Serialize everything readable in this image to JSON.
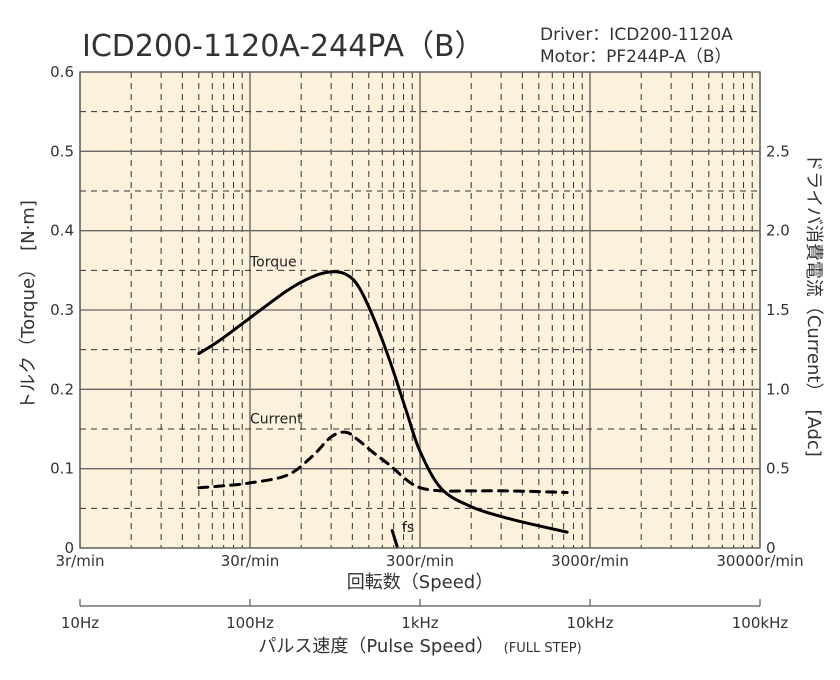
{
  "chart_data": {
    "type": "line",
    "title": "ICD200-1120A-244PA（B）",
    "subtitle_lines": [
      "Driver：ICD200-1120A",
      "Motor：PF244P-A（B）"
    ],
    "xlabel": "回転数（Speed）",
    "ylabel": "トルク（Torque）　[N·m]",
    "ylabel_right": "ドライバ消費電流（Current）　[Adc]",
    "x2label": "パルス速度（Pulse Speed）",
    "x2label_suffix": "(FULL STEP)",
    "xscale": "log",
    "xlim": [
      3,
      30000
    ],
    "ylim": [
      0,
      0.6
    ],
    "ylim_right": [
      0,
      3.0
    ],
    "x_ticks": [
      3,
      30,
      300,
      3000,
      30000
    ],
    "x_tick_labels": [
      "3r/min",
      "30r/min",
      "300r/min",
      "3000r/min",
      "30000r/min"
    ],
    "x2_ticks": [
      10,
      100,
      1000,
      10000,
      100000
    ],
    "x2_tick_labels": [
      "10Hz",
      "100Hz",
      "1kHz",
      "10kHz",
      "100kHz"
    ],
    "y_ticks": [
      0,
      0.1,
      0.2,
      0.3,
      0.4,
      0.5,
      0.6
    ],
    "y_tick_labels": [
      "0",
      "0.1",
      "0.2",
      "0.3",
      "0.4",
      "0.5",
      "0.6"
    ],
    "y_right_ticks": [
      0,
      0.5,
      1.0,
      1.5,
      2.0,
      2.5
    ],
    "y_right_tick_labels": [
      "0",
      "0.5",
      "1.0",
      "1.5",
      "2.0",
      "2.5"
    ],
    "grid": true,
    "background_color": "#fdf1dc",
    "series": [
      {
        "name": "Torque",
        "axis": "left",
        "style": "solid",
        "color": "#000000",
        "x": [
          15,
          20,
          30,
          50,
          70,
          90,
          110,
          130,
          160,
          200,
          250,
          300,
          400,
          600,
          1000,
          1500,
          2200
        ],
        "y": [
          0.245,
          0.262,
          0.29,
          0.325,
          0.342,
          0.348,
          0.345,
          0.33,
          0.29,
          0.235,
          0.172,
          0.122,
          0.075,
          0.052,
          0.037,
          0.028,
          0.02
        ]
      },
      {
        "name": "Current",
        "axis": "right",
        "style": "dashed",
        "color": "#000000",
        "x": [
          15,
          20,
          30,
          50,
          70,
          90,
          110,
          130,
          160,
          200,
          250,
          300,
          400,
          600,
          1000,
          2200
        ],
        "y": [
          0.38,
          0.39,
          0.41,
          0.46,
          0.58,
          0.7,
          0.73,
          0.68,
          0.6,
          0.52,
          0.43,
          0.38,
          0.36,
          0.36,
          0.36,
          0.35
        ]
      },
      {
        "name": "fs",
        "axis": "left",
        "style": "solid",
        "color": "#000000",
        "x": [
          206,
          220
        ],
        "y": [
          0.022,
          0.002
        ]
      }
    ],
    "annotations": [
      {
        "text": "Torque",
        "x": 30,
        "y": 0.355
      },
      {
        "text": "Current",
        "x": 30,
        "y": 0.157
      },
      {
        "text": "fs",
        "x": 235,
        "y": 0.02
      }
    ]
  }
}
